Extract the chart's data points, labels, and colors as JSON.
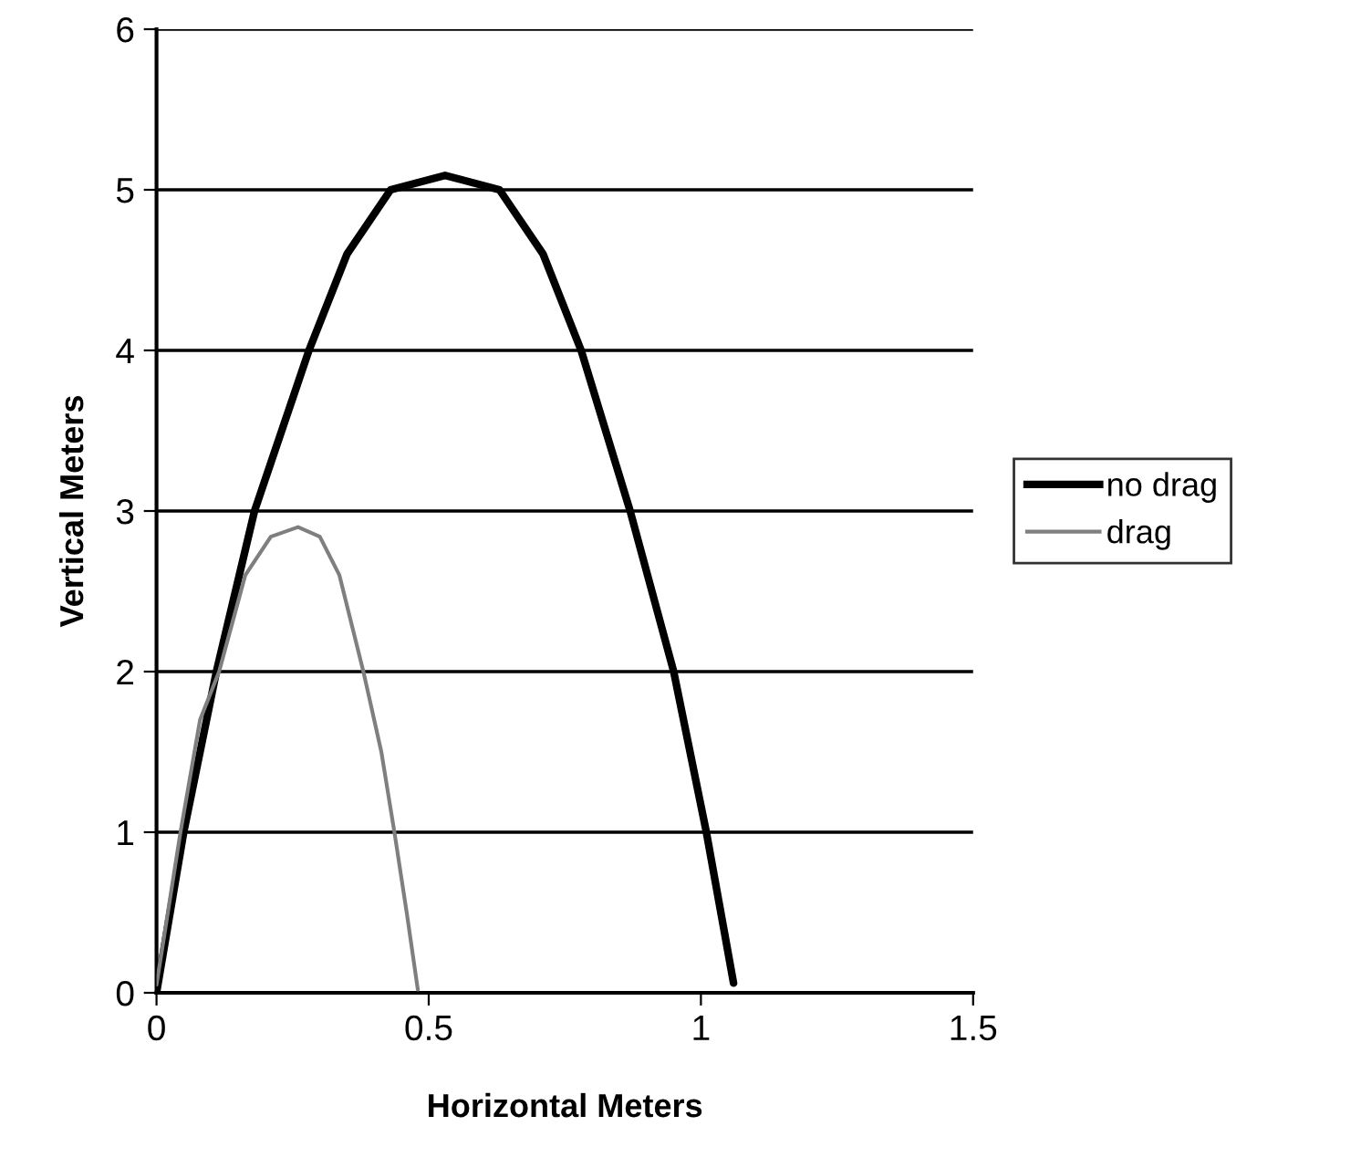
{
  "chart_data": {
    "type": "line",
    "xlabel": "Horizontal Meters",
    "ylabel": "Vertical Meters",
    "xlim": [
      0,
      1.5
    ],
    "xticks": [
      0,
      0.5,
      1,
      1.5
    ],
    "ylim": [
      0,
      6
    ],
    "yticks": [
      0,
      1,
      2,
      3,
      4,
      5,
      6
    ],
    "grid": "y",
    "legend": "right",
    "marker": "none",
    "series": [
      {
        "name": "no drag",
        "color": "#000000",
        "line_style": "solid",
        "x": [
          0,
          0.05,
          0.11,
          0.18,
          0.28,
          0.35,
          0.43,
          0.53,
          0.63,
          0.71,
          0.78,
          0.87,
          0.95,
          1.01,
          1.06
        ],
        "values": [
          0,
          1.0,
          2.0,
          3.0,
          4.0,
          4.6,
          5.0,
          5.09,
          5.0,
          4.6,
          4.0,
          3.0,
          2.0,
          1.0,
          0.06
        ]
      },
      {
        "name": "drag",
        "color": "#7f7f7f",
        "line_style": "solid",
        "x": [
          0,
          0.044,
          0.08,
          0.115,
          0.163,
          0.21,
          0.26,
          0.3,
          0.336,
          0.38,
          0.413,
          0.437,
          0.46,
          0.48
        ],
        "values": [
          0.05,
          1.0,
          1.7,
          2.0,
          2.6,
          2.84,
          2.9,
          2.84,
          2.6,
          2.0,
          1.5,
          1.0,
          0.49,
          0.02
        ]
      }
    ]
  }
}
